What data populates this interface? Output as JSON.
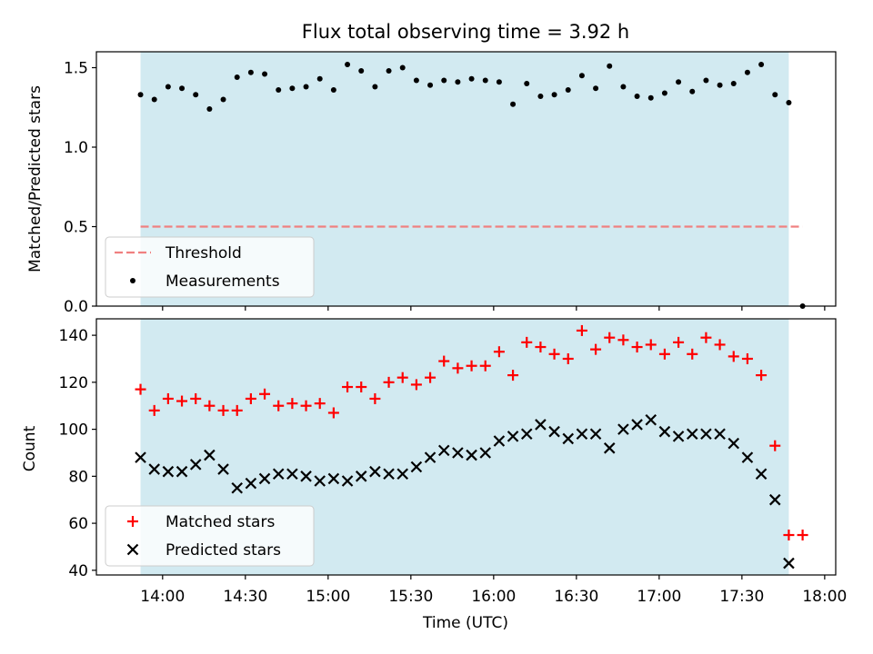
{
  "chart_data": [
    {
      "type": "scatter",
      "title": "Flux total observing time = 3.92 h",
      "xlabel": "",
      "ylabel": "Matched/Predicted stars",
      "ylim": [
        0.0,
        1.6
      ],
      "yticks": [
        "0.0",
        "0.5",
        "1.0",
        "1.5"
      ],
      "xlim": [
        "13:36",
        "18:04"
      ],
      "shaded_range": [
        "13:52",
        "17:47"
      ],
      "shade_color": "#add8e6",
      "grid": false,
      "legend_position": "lower-left",
      "threshold": {
        "name": "Threshold",
        "value": 0.5,
        "x_range": [
          "13:52",
          "17:52"
        ],
        "color": "#f08080"
      },
      "series": [
        {
          "name": "Measurements",
          "color": "#000000",
          "x": [
            "13:52",
            "13:57",
            "14:02",
            "14:07",
            "14:12",
            "14:17",
            "14:22",
            "14:27",
            "14:32",
            "14:37",
            "14:42",
            "14:47",
            "14:52",
            "14:57",
            "15:02",
            "15:07",
            "15:12",
            "15:17",
            "15:22",
            "15:27",
            "15:32",
            "15:37",
            "15:42",
            "15:47",
            "15:52",
            "15:57",
            "16:02",
            "16:07",
            "16:12",
            "16:17",
            "16:22",
            "16:27",
            "16:32",
            "16:37",
            "16:42",
            "16:47",
            "16:52",
            "16:57",
            "17:02",
            "17:07",
            "17:12",
            "17:17",
            "17:22",
            "17:27",
            "17:32",
            "17:37",
            "17:42",
            "17:47",
            "17:52"
          ],
          "y": [
            1.33,
            1.3,
            1.38,
            1.37,
            1.33,
            1.24,
            1.3,
            1.44,
            1.47,
            1.46,
            1.36,
            1.37,
            1.38,
            1.43,
            1.36,
            1.52,
            1.48,
            1.38,
            1.48,
            1.5,
            1.42,
            1.39,
            1.42,
            1.41,
            1.43,
            1.42,
            1.41,
            1.27,
            1.4,
            1.32,
            1.33,
            1.36,
            1.45,
            1.37,
            1.51,
            1.38,
            1.32,
            1.31,
            1.34,
            1.41,
            1.35,
            1.42,
            1.39,
            1.4,
            1.47,
            1.52,
            1.33,
            1.28,
            0.0
          ]
        }
      ]
    },
    {
      "type": "scatter",
      "title": "",
      "xlabel": "Time (UTC)",
      "ylabel": "Count",
      "ylim": [
        38,
        147
      ],
      "yticks": [
        "40",
        "60",
        "80",
        "100",
        "120",
        "140"
      ],
      "xlim": [
        "13:36",
        "18:04"
      ],
      "xticks": [
        "14:00",
        "14:30",
        "15:00",
        "15:30",
        "16:00",
        "16:30",
        "17:00",
        "17:30",
        "18:00"
      ],
      "shaded_range": [
        "13:52",
        "17:47"
      ],
      "shade_color": "#add8e6",
      "grid": false,
      "legend_position": "lower-left",
      "series": [
        {
          "name": "Matched stars",
          "marker": "+",
          "color": "#ff0000",
          "x": [
            "13:52",
            "13:57",
            "14:02",
            "14:07",
            "14:12",
            "14:17",
            "14:22",
            "14:27",
            "14:32",
            "14:37",
            "14:42",
            "14:47",
            "14:52",
            "14:57",
            "15:02",
            "15:07",
            "15:12",
            "15:17",
            "15:22",
            "15:27",
            "15:32",
            "15:37",
            "15:42",
            "15:47",
            "15:52",
            "15:57",
            "16:02",
            "16:07",
            "16:12",
            "16:17",
            "16:22",
            "16:27",
            "16:32",
            "16:37",
            "16:42",
            "16:47",
            "16:52",
            "16:57",
            "17:02",
            "17:07",
            "17:12",
            "17:17",
            "17:22",
            "17:27",
            "17:32",
            "17:37",
            "17:42",
            "17:47",
            "17:52"
          ],
          "y": [
            117,
            108,
            113,
            112,
            113,
            110,
            108,
            108,
            113,
            115,
            110,
            111,
            110,
            111,
            107,
            118,
            118,
            113,
            120,
            122,
            119,
            122,
            129,
            126,
            127,
            127,
            133,
            123,
            137,
            135,
            132,
            130,
            142,
            134,
            139,
            138,
            135,
            136,
            132,
            137,
            132,
            139,
            136,
            131,
            130,
            123,
            93,
            55,
            55
          ]
        },
        {
          "name": "Predicted stars",
          "marker": "x",
          "color": "#000000",
          "x": [
            "13:52",
            "13:57",
            "14:02",
            "14:07",
            "14:12",
            "14:17",
            "14:22",
            "14:27",
            "14:32",
            "14:37",
            "14:42",
            "14:47",
            "14:52",
            "14:57",
            "15:02",
            "15:07",
            "15:12",
            "15:17",
            "15:22",
            "15:27",
            "15:32",
            "15:37",
            "15:42",
            "15:47",
            "15:52",
            "15:57",
            "16:02",
            "16:07",
            "16:12",
            "16:17",
            "16:22",
            "16:27",
            "16:32",
            "16:37",
            "16:42",
            "16:47",
            "16:52",
            "16:57",
            "17:02",
            "17:07",
            "17:12",
            "17:17",
            "17:22",
            "17:27",
            "17:32",
            "17:37",
            "17:42",
            "17:47"
          ],
          "y": [
            88,
            83,
            82,
            82,
            85,
            89,
            83,
            75,
            77,
            79,
            81,
            81,
            80,
            78,
            79,
            78,
            80,
            82,
            81,
            81,
            84,
            88,
            91,
            90,
            89,
            90,
            95,
            97,
            98,
            102,
            99,
            96,
            98,
            98,
            92,
            100,
            102,
            104,
            99,
            97,
            98,
            98,
            98,
            94,
            88,
            81,
            70,
            43
          ]
        }
      ]
    }
  ]
}
